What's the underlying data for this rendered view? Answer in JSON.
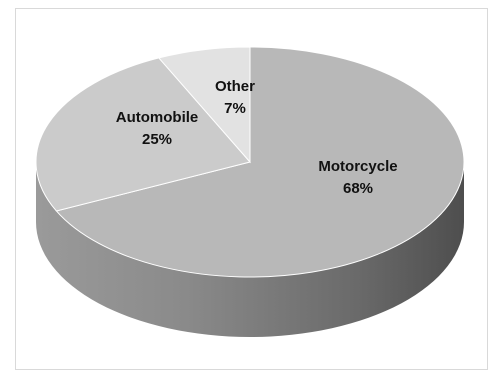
{
  "chart_data": {
    "type": "pie",
    "style": "3d",
    "title": "",
    "slices": [
      {
        "name": "Motorcycle",
        "value": 68,
        "label": "68%",
        "color": "#b8b8b8"
      },
      {
        "name": "Automobile",
        "value": 25,
        "label": "25%",
        "color": "#cbcbcb"
      },
      {
        "name": "Other",
        "value": 7,
        "label": "7%",
        "color": "#e2e2e2"
      }
    ],
    "legend": "none",
    "data_labels": "category-and-percent"
  }
}
